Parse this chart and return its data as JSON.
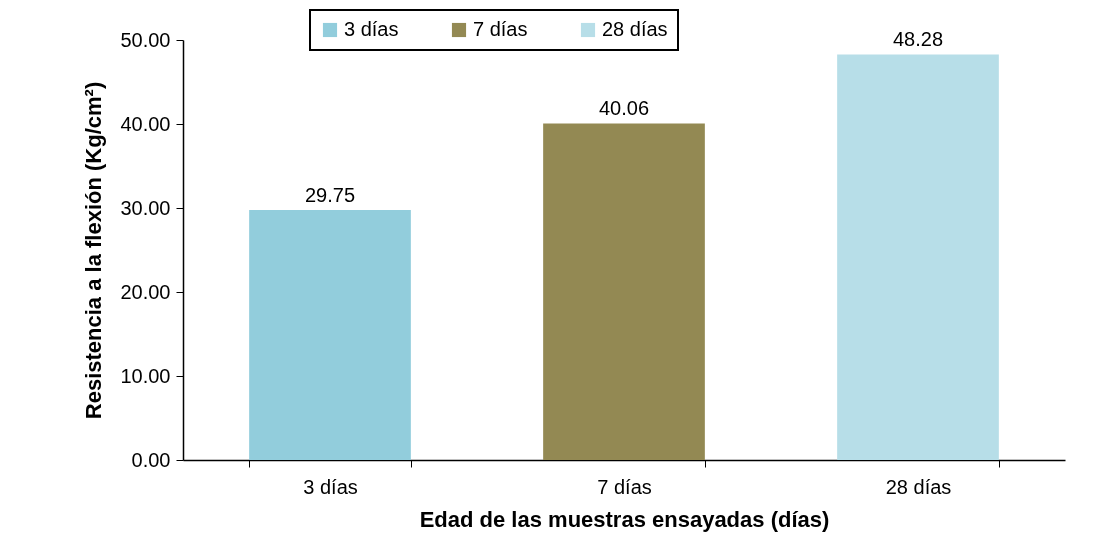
{
  "chart_data": {
    "type": "bar",
    "xlabel": "Edad de las muestras ensayadas (días)",
    "ylabel": "Resistencia a la flexión (Kg/cm²)",
    "categories": [
      "3 días",
      "7 días",
      "28 días"
    ],
    "series": [
      {
        "name": "3 días",
        "color": "#92cddc",
        "values": [
          29.75,
          null,
          null
        ]
      },
      {
        "name": "7 días",
        "color": "#938953",
        "values": [
          null,
          40.06,
          null
        ]
      },
      {
        "name": "28 días",
        "color": "#b7dee8",
        "values": [
          null,
          null,
          48.28
        ]
      }
    ],
    "ylim": [
      0,
      50
    ],
    "yticks": [
      {
        "value": 0,
        "label": "0.00"
      },
      {
        "value": 10,
        "label": "10.00"
      },
      {
        "value": 20,
        "label": "20.00"
      },
      {
        "value": 30,
        "label": "30.00"
      },
      {
        "value": 40,
        "label": "40.00"
      },
      {
        "value": 50,
        "label": "50.00"
      }
    ],
    "data_labels": true,
    "grid": false,
    "legend": "top"
  }
}
